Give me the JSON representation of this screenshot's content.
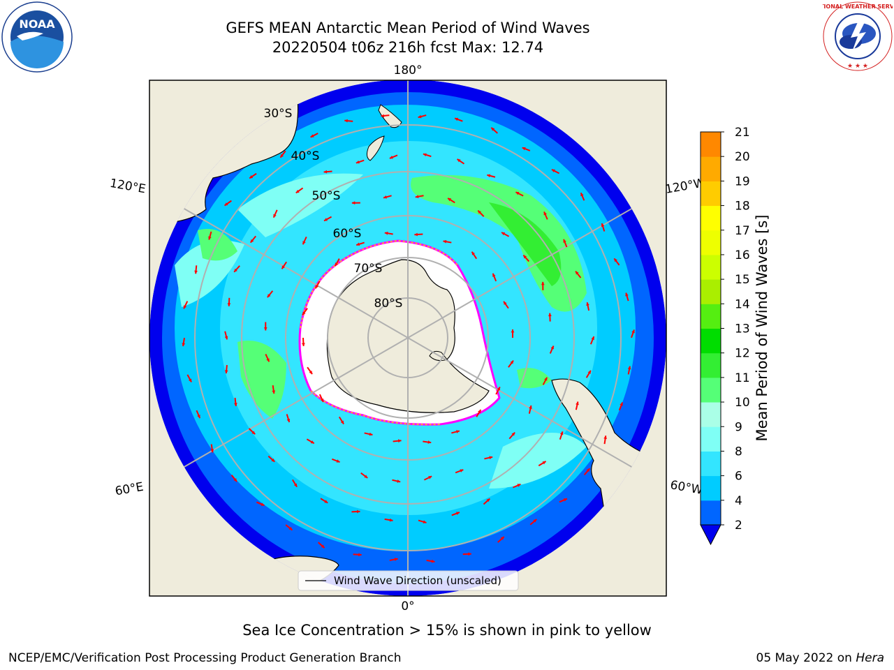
{
  "header": {
    "title_line1": "GEFS MEAN Antarctic Mean Period of Wind Waves",
    "title_line2": "20220504 t06z 216h fcst   Max: 12.74"
  },
  "logos": {
    "noaa": {
      "name": "noaa-logo",
      "text": "NOAA",
      "ring_text": "NATIONAL OCEANIC AND ATMOSPHERIC ADMINISTRATION · U.S. DEPARTMENT OF COMMERCE"
    },
    "nws": {
      "name": "national-weather-service-logo",
      "ring_text": "NATIONAL WEATHER SERVICE"
    }
  },
  "map": {
    "projection": "south polar stereographic",
    "longitude_labels": {
      "top": "180°",
      "left_upper": "120°E",
      "right_upper": "120°W",
      "left_lower": "60°E",
      "right_lower": "60°W",
      "bottom": "0°"
    },
    "latitude_labels": [
      "30°S",
      "40°S",
      "50°S",
      "60°S",
      "70°S",
      "80°S"
    ],
    "legend_label": "Wind Wave Direction (unscaled)",
    "arrow_color": "#ff0000",
    "land_color": "#efecdc",
    "ice_edge_colors": [
      "#ff00ff",
      "#ffd700"
    ]
  },
  "colorbar": {
    "label": "Mean Period of Wind Waves [s]",
    "ticks": [
      "2",
      "4",
      "6",
      "8",
      "9",
      "10",
      "11",
      "12",
      "13",
      "14",
      "15",
      "16",
      "17",
      "18",
      "19",
      "20",
      "21"
    ],
    "colors": [
      "#0066ff",
      "#00ccff",
      "#33e5ff",
      "#7ffff5",
      "#aaffe7",
      "#55ff77",
      "#33ee33",
      "#00dd00",
      "#55ee11",
      "#aaee00",
      "#ccff00",
      "#eeff00",
      "#ffff00",
      "#ffcc00",
      "#ffaa00",
      "#ff8800",
      "#ff5500",
      "#ff2200",
      "#ff0000"
    ],
    "under_color": "#0000ee"
  },
  "notes": {
    "sea_ice": "Sea Ice Concentration > 15% is shown in pink to yellow"
  },
  "footer": {
    "left": "NCEP/EMC/Verification Post Processing Product Generation Branch",
    "right_date": "05 May 2022 on ",
    "right_host": "Hera"
  }
}
